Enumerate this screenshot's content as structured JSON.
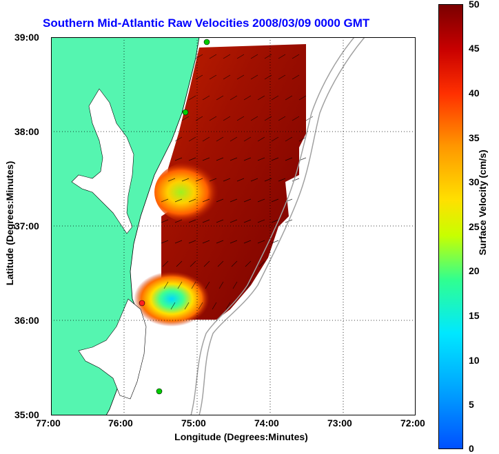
{
  "title": "Southern Mid-Atlantic Raw Velocities 2008/03/09 0000 GMT",
  "axes": {
    "xlabel": "Longitude (Degrees:Minutes)",
    "ylabel": "Latitude (Degrees:Minutes)",
    "x_ticks": [
      "77:00",
      "76:00",
      "75:00",
      "74:00",
      "73:00",
      "72:00"
    ],
    "y_ticks": [
      "39:00",
      "38:00",
      "37:00",
      "36:00",
      "35:00"
    ]
  },
  "colorbar": {
    "label": "Surface Velocity (cm/s)",
    "ticks": [
      "50",
      "45",
      "40",
      "35",
      "30",
      "25",
      "20",
      "15",
      "10",
      "5",
      "0"
    ],
    "range": [
      0,
      50
    ],
    "colors": [
      "#0050ff",
      "#00e8ff",
      "#30ff90",
      "#ffe000",
      "#ff3000",
      "#7a0000"
    ]
  },
  "map": {
    "land_color": "#55f5b0",
    "ocean_color": "#ffffff",
    "grid": "dotted",
    "station_markers": [
      {
        "color": "#00cc00"
      },
      {
        "color": "#00cc00"
      },
      {
        "color": "#ff2020"
      },
      {
        "color": "#00cc00"
      }
    ]
  }
}
